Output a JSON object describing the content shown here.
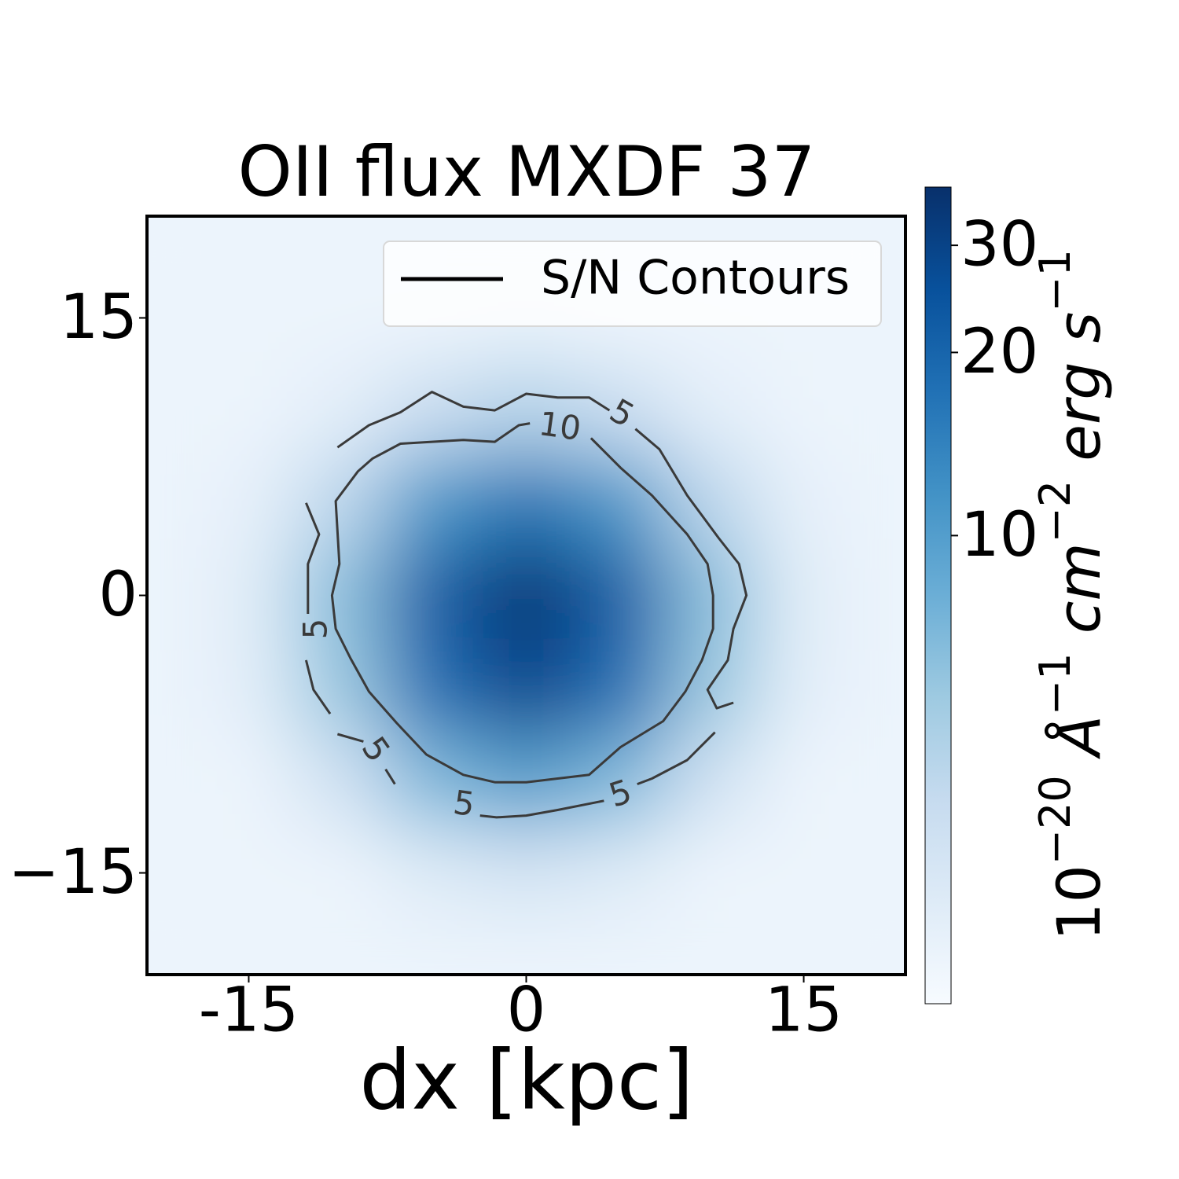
{
  "chart_data": {
    "type": "heatmap",
    "title": "OII flux MXDF 37",
    "xlabel": "dx [kpc]",
    "colorbar_label": [
      "10",
      "−20",
      " Å",
      "−1",
      " cm",
      "−2",
      " erg s",
      "−1"
    ],
    "xlim": [
      -20.5,
      20.5
    ],
    "ylim": [
      -20.5,
      20.5
    ],
    "xticks": [
      -15,
      0,
      15
    ],
    "yticks": [
      {
        "value": -15,
        "label": "−15"
      },
      0,
      15
    ],
    "grid_x": [
      -20,
      -15,
      -10,
      -5,
      0,
      5,
      10,
      15,
      20
    ],
    "grid_y": [
      20,
      15,
      10,
      5,
      0,
      -5,
      -10,
      -15,
      -20
    ],
    "z": [
      [
        2,
        2,
        2,
        2,
        2,
        2,
        2,
        2,
        2
      ],
      [
        2,
        2,
        2,
        2,
        2.1,
        2,
        2,
        2,
        2
      ],
      [
        2,
        2,
        2.3,
        3.5,
        4.4,
        3.5,
        2.3,
        2,
        2
      ],
      [
        2,
        2.2,
        4.0,
        10.9,
        16.7,
        10.9,
        4.0,
        2.2,
        2
      ],
      [
        2,
        2.4,
        6.4,
        21.7,
        34.5,
        21.7,
        6.4,
        2.4,
        2
      ],
      [
        2,
        2.3,
        5.6,
        18.1,
        28.6,
        18.1,
        5.6,
        2.3,
        2
      ],
      [
        2,
        2,
        3.1,
        6.9,
        10.1,
        6.9,
        3.1,
        2,
        2
      ],
      [
        2,
        2,
        2,
        2.5,
        2.9,
        2.5,
        2,
        2,
        2
      ],
      [
        2,
        2,
        2,
        2,
        2,
        2,
        2,
        2,
        2
      ]
    ],
    "colormap": [
      "#f7fbff",
      "#deebf7",
      "#c6dbef",
      "#9ecae1",
      "#6baed6",
      "#4292c6",
      "#2171b5",
      "#08519c",
      "#08306b"
    ],
    "color_scale": "log",
    "clim": [
      1.7,
      37.4
    ],
    "cticks": [
      10,
      20,
      30
    ],
    "contour_color": "#3a3a3a",
    "contours": [
      {
        "level": 5,
        "x": [
          -10.2,
          -8.5,
          -6.8,
          -5.1,
          -3.4,
          -1.7,
          0,
          1.7,
          3.4,
          4.5,
          null,
          5.9,
          7.2,
          8.7,
          10.4,
          11.5,
          11.9,
          11.2,
          10.9,
          9.8,
          10.3,
          11.2,
          null,
          10.2,
          8.7,
          6.8,
          6.0,
          null,
          4.2,
          1.7,
          0,
          -1.6,
          -2.5,
          null,
          -7.1,
          -7.6,
          null,
          -8.8,
          -10.2,
          null,
          -10.6,
          -11.5,
          -11.9,
          null,
          -11.8,
          -11.8,
          -11.2,
          -11.9
        ],
        "y": [
          8.0,
          9.2,
          9.9,
          11.0,
          10.2,
          10.0,
          10.9,
          10.7,
          10.7,
          10.0,
          null,
          9.0,
          7.9,
          5.4,
          3.1,
          1.7,
          0,
          -1.8,
          -3.5,
          -5.1,
          -6.1,
          -5.8,
          null,
          -7.4,
          -8.9,
          -9.9,
          -10.2,
          null,
          -11.1,
          -11.6,
          -11.9,
          -12.0,
          -11.9,
          null,
          -10.2,
          -9.4,
          null,
          -7.9,
          -7.5,
          null,
          -6.4,
          -5.1,
          -3.5,
          null,
          -1.0,
          1.7,
          3.3,
          5.0
        ]
      },
      {
        "level": 10,
        "x": [
          3.5,
          5.1,
          6.8,
          8.7,
          9.8,
          10.1,
          10.1,
          9.5,
          8.6,
          7.4,
          5.1,
          3.4,
          1.7,
          0,
          -1.7,
          -3.4,
          -5.4,
          -7.0,
          -8.5,
          -9.5,
          -10.3,
          -10.5,
          -10.1,
          -10.3,
          -9.1,
          -8.3,
          -6.8,
          -5.1,
          -3.4,
          -1.7,
          -0.4,
          0.2
        ],
        "y": [
          8.5,
          6.9,
          5.4,
          3.3,
          1.7,
          0,
          -1.8,
          -3.5,
          -5.2,
          -6.8,
          -8.2,
          -9.7,
          -9.9,
          -10.1,
          -10.1,
          -9.7,
          -8.6,
          -6.9,
          -5.2,
          -3.4,
          -1.8,
          0,
          1.7,
          5.1,
          6.7,
          7.4,
          8.2,
          8.3,
          8.4,
          8.3,
          9.2,
          9.3
        ]
      }
    ],
    "legend": "upper right",
    "legend_entries": [
      {
        "name": "S/N Contours",
        "color": "#000000"
      }
    ]
  }
}
